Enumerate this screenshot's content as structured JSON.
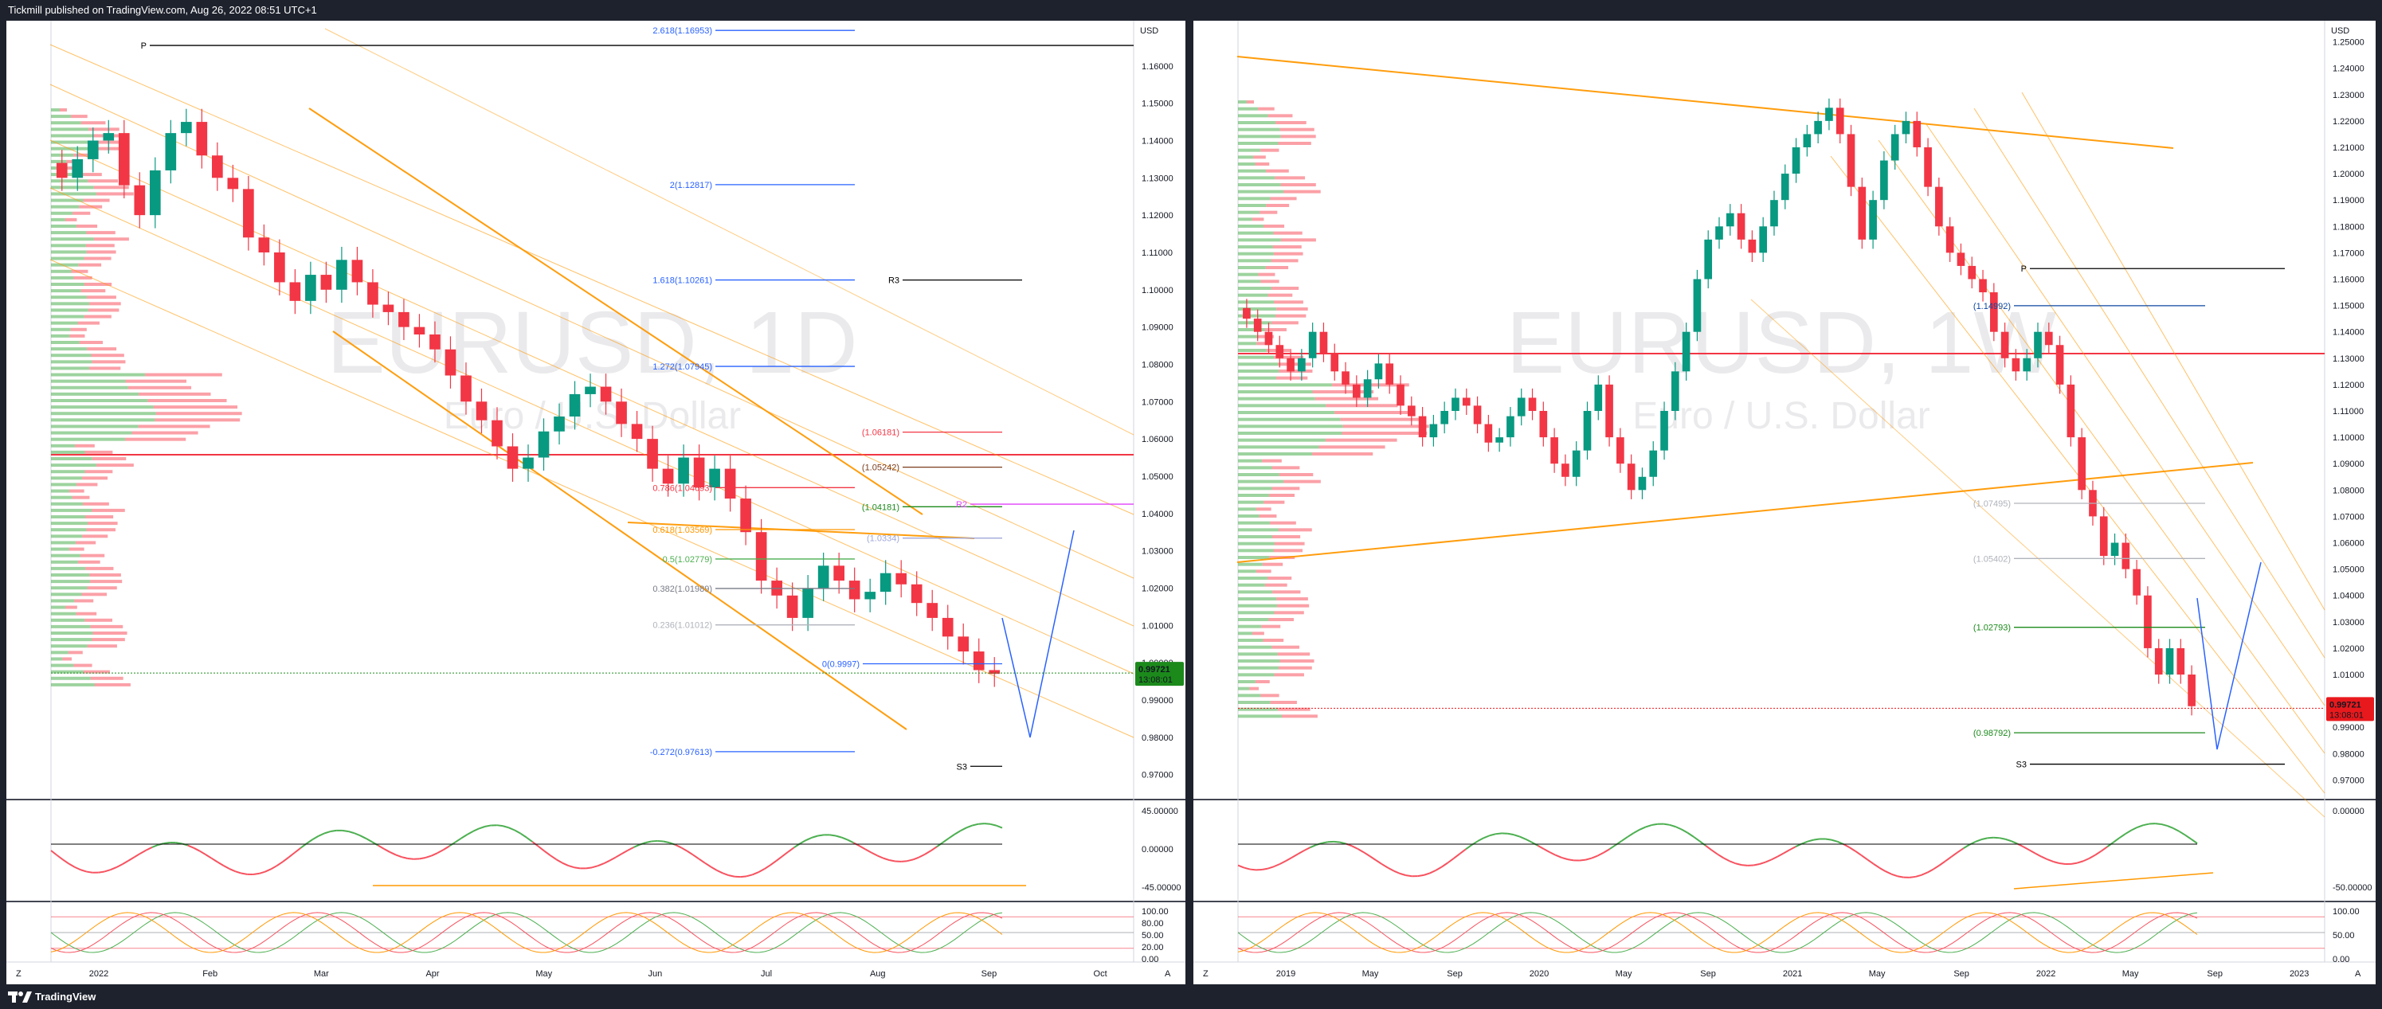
{
  "header": {
    "text": "Tickmill published on TradingView.com, Aug 26, 2022 08:51 UTC+1"
  },
  "footer": {
    "brand": "TradingView",
    "logo_icon": "tradingview-logo-icon"
  },
  "colors": {
    "up": "#26a69a",
    "down": "#ef5350",
    "fib_blue": "#2962ff",
    "channel": "#ff9800",
    "poc": "#f23645",
    "price_up_bg": "#1b8a1b",
    "price_down_bg": "#e8191c"
  },
  "chart_data": [
    {
      "type": "candlestick",
      "panel": "left",
      "watermark": {
        "symbol": "EURUSD, 1D",
        "name": "Euro / U.S. Dollar"
      },
      "currency": "USD",
      "y_ticks": [
        "1.16000",
        "1.15000",
        "1.14000",
        "1.13000",
        "1.12000",
        "1.11000",
        "1.10000",
        "1.09000",
        "1.08000",
        "1.07000",
        "1.06000",
        "1.05000",
        "1.04000",
        "1.03000",
        "1.02000",
        "1.01000",
        "1.00000",
        "0.99000",
        "0.98000",
        "0.97000"
      ],
      "ylim": [
        0.965,
        1.17
      ],
      "x_ticks": [
        "2022",
        "Feb",
        "Mar",
        "Apr",
        "May",
        "Jun",
        "Jul",
        "Aug",
        "Sep",
        "Oct"
      ],
      "last_price": "0.99721",
      "countdown": "13:08:01",
      "price_label_color": "up",
      "levels": [
        {
          "label": "2.618(1.16953)",
          "value": 1.16953
        },
        {
          "label": "P",
          "value": 1.1655
        },
        {
          "label": "2(1.12817)",
          "value": 1.12817
        },
        {
          "label": "1.618(1.10261)",
          "value": 1.10261
        },
        {
          "label": "R3",
          "value": 1.1026
        },
        {
          "label": "1.272(1.07945)",
          "value": 1.07945
        },
        {
          "label": "(1.06181)",
          "value": 1.06181
        },
        {
          "label": "(1.05242)",
          "value": 1.05242
        },
        {
          "label": "0.786(1.04693)",
          "value": 1.04693
        },
        {
          "label": "(1.04181)",
          "value": 1.04181
        },
        {
          "label": "R2",
          "value": 1.0425
        },
        {
          "label": "0.618(1.03569)",
          "value": 1.03569
        },
        {
          "label": "(1.0334)",
          "value": 1.0334
        },
        {
          "label": "0.5(1.02779)",
          "value": 1.02779
        },
        {
          "label": "0.382(1.01989)",
          "value": 1.01989
        },
        {
          "label": "0.236(1.01012)",
          "value": 1.01012
        },
        {
          "label": "0(0.9997)",
          "value": 0.9997
        },
        {
          "label": "-0.272(0.97613)",
          "value": 0.97613
        },
        {
          "label": "S3",
          "value": 0.9722
        }
      ],
      "closes": [
        1.13,
        1.135,
        1.14,
        1.142,
        1.128,
        1.12,
        1.132,
        1.142,
        1.145,
        1.136,
        1.13,
        1.127,
        1.114,
        1.11,
        1.102,
        1.097,
        1.104,
        1.1,
        1.108,
        1.102,
        1.096,
        1.094,
        1.09,
        1.088,
        1.084,
        1.077,
        1.07,
        1.065,
        1.058,
        1.052,
        1.055,
        1.062,
        1.066,
        1.072,
        1.074,
        1.07,
        1.064,
        1.06,
        1.052,
        1.048,
        1.055,
        1.047,
        1.052,
        1.044,
        1.035,
        1.022,
        1.018,
        1.012,
        1.02,
        1.026,
        1.022,
        1.017,
        1.019,
        1.024,
        1.021,
        1.016,
        1.012,
        1.007,
        1.003,
        0.998,
        0.997
      ],
      "indicator_rsi": {
        "y_ticks": [
          "45.00000",
          "0.00000",
          "-45.00000"
        ]
      },
      "indicator_stoch": {
        "y_ticks": [
          "100.00",
          "80.00",
          "50.00",
          "20.00",
          "0.00"
        ]
      }
    },
    {
      "type": "candlestick",
      "panel": "right",
      "watermark": {
        "symbol": "EURUSD, 1W",
        "name": "Euro / U.S. Dollar"
      },
      "currency": "USD",
      "y_ticks": [
        "1.25000",
        "1.24000",
        "1.23000",
        "1.22000",
        "1.21000",
        "1.20000",
        "1.19000",
        "1.18000",
        "1.17000",
        "1.16000",
        "1.15000",
        "1.14000",
        "1.13000",
        "1.12000",
        "1.11000",
        "1.10000",
        "1.09000",
        "1.08000",
        "1.07000",
        "1.06000",
        "1.05000",
        "1.04000",
        "1.03000",
        "1.02000",
        "1.01000",
        "1.00000",
        "0.99000",
        "0.98000",
        "0.97000"
      ],
      "ylim": [
        0.965,
        1.255
      ],
      "x_ticks": [
        "2019",
        "May",
        "Sep",
        "2020",
        "May",
        "Sep",
        "2021",
        "May",
        "Sep",
        "2022",
        "May",
        "Sep",
        "2023"
      ],
      "last_price": "0.99721",
      "countdown": "13:08:01",
      "price_label_color": "down",
      "levels": [
        {
          "label": "P",
          "value": 1.164
        },
        {
          "label": "(1.14992)",
          "value": 1.14992
        },
        {
          "label": "(1.07495)",
          "value": 1.07495
        },
        {
          "label": "(1.05402)",
          "value": 1.05402
        },
        {
          "label": "(1.02793)",
          "value": 1.02793
        },
        {
          "label": "(0.98792)",
          "value": 0.98792
        },
        {
          "label": "S3",
          "value": 0.976
        }
      ],
      "closes": [
        1.145,
        1.14,
        1.135,
        1.13,
        1.125,
        1.13,
        1.14,
        1.132,
        1.125,
        1.12,
        1.115,
        1.122,
        1.128,
        1.12,
        1.112,
        1.108,
        1.1,
        1.105,
        1.11,
        1.115,
        1.112,
        1.105,
        1.098,
        1.1,
        1.108,
        1.115,
        1.11,
        1.1,
        1.09,
        1.085,
        1.095,
        1.11,
        1.12,
        1.1,
        1.09,
        1.08,
        1.085,
        1.095,
        1.11,
        1.125,
        1.14,
        1.16,
        1.175,
        1.18,
        1.185,
        1.175,
        1.17,
        1.18,
        1.19,
        1.2,
        1.21,
        1.215,
        1.22,
        1.225,
        1.215,
        1.195,
        1.175,
        1.19,
        1.205,
        1.215,
        1.22,
        1.21,
        1.195,
        1.18,
        1.17,
        1.165,
        1.16,
        1.155,
        1.14,
        1.13,
        1.125,
        1.13,
        1.14,
        1.135,
        1.12,
        1.1,
        1.08,
        1.07,
        1.055,
        1.06,
        1.05,
        1.04,
        1.02,
        1.01,
        1.02,
        1.01,
        0.998
      ],
      "indicator_rsi": {
        "y_ticks": [
          "0.00000",
          "-50.00000"
        ]
      },
      "indicator_stoch": {
        "y_ticks": [
          "100.00",
          "50.00",
          "0.00"
        ]
      }
    }
  ]
}
